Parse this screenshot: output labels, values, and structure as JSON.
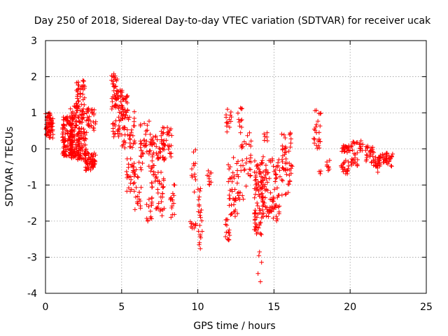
{
  "chart_data": {
    "type": "scatter",
    "title": "Day 250 of 2018, Sidereal Day-to-day VTEC variation (SDTVAR) for receiver ucak",
    "xlabel": "GPS time / hours",
    "ylabel": "SDTVAR / TECUs",
    "xlim": [
      0,
      25
    ],
    "ylim": [
      -4,
      3
    ],
    "xticks": [
      0,
      5,
      10,
      15,
      20,
      25
    ],
    "yticks": [
      -4,
      -3,
      -2,
      -1,
      0,
      1,
      2,
      3
    ],
    "x_tick_labels": [
      "0",
      "5",
      "10",
      "15",
      "20",
      "25"
    ],
    "y_tick_labels": [
      "-4",
      "-3",
      "-2",
      "-1",
      "0",
      "1",
      "2",
      "3"
    ],
    "grid": true,
    "marker": "+",
    "color": "#ff0000",
    "clusters": [
      {
        "x": [
          0.0,
          0.5
        ],
        "y": [
          0.3,
          1.0
        ],
        "n": 70
      },
      {
        "x": [
          1.1,
          1.8
        ],
        "y": [
          -0.2,
          0.9
        ],
        "n": 120
      },
      {
        "x": [
          1.6,
          2.2
        ],
        "y": [
          -0.3,
          1.2
        ],
        "n": 90
      },
      {
        "x": [
          2.0,
          2.6
        ],
        "y": [
          0.7,
          1.9
        ],
        "n": 60
      },
      {
        "x": [
          2.1,
          2.7
        ],
        "y": [
          -0.3,
          0.6
        ],
        "n": 60
      },
      {
        "x": [
          2.6,
          3.3
        ],
        "y": [
          -0.6,
          -0.1
        ],
        "n": 60
      },
      {
        "x": [
          2.6,
          3.3
        ],
        "y": [
          0.5,
          1.2
        ],
        "n": 30
      },
      {
        "x": [
          4.3,
          4.8
        ],
        "y": [
          1.1,
          2.1
        ],
        "n": 45
      },
      {
        "x": [
          4.4,
          4.9
        ],
        "y": [
          0.3,
          1.0
        ],
        "n": 20
      },
      {
        "x": [
          4.8,
          5.4
        ],
        "y": [
          0.8,
          1.7
        ],
        "n": 40
      },
      {
        "x": [
          5.0,
          5.9
        ],
        "y": [
          0.0,
          1.1
        ],
        "n": 45
      },
      {
        "x": [
          5.3,
          5.9
        ],
        "y": [
          -1.2,
          -0.2
        ],
        "n": 25
      },
      {
        "x": [
          5.8,
          6.3
        ],
        "y": [
          -1.7,
          -0.3
        ],
        "n": 25
      },
      {
        "x": [
          6.2,
          6.9
        ],
        "y": [
          -0.6,
          0.8
        ],
        "n": 35
      },
      {
        "x": [
          6.6,
          7.0
        ],
        "y": [
          -2.1,
          -1.3
        ],
        "n": 15
      },
      {
        "x": [
          6.9,
          7.8
        ],
        "y": [
          -1.1,
          0.4
        ],
        "n": 60
      },
      {
        "x": [
          7.2,
          7.8
        ],
        "y": [
          -1.9,
          -1.0
        ],
        "n": 20
      },
      {
        "x": [
          7.6,
          8.3
        ],
        "y": [
          -0.3,
          0.6
        ],
        "n": 35
      },
      {
        "x": [
          8.2,
          8.5
        ],
        "y": [
          -1.9,
          -0.9
        ],
        "n": 15
      },
      {
        "x": [
          9.5,
          9.9
        ],
        "y": [
          -2.2,
          -2.0
        ],
        "n": 10
      },
      {
        "x": [
          9.6,
          9.9
        ],
        "y": [
          -1.2,
          0.0
        ],
        "n": 12
      },
      {
        "x": [
          10.0,
          10.3
        ],
        "y": [
          -2.8,
          -1.0
        ],
        "n": 22
      },
      {
        "x": [
          10.6,
          10.9
        ],
        "y": [
          -1.0,
          -0.6
        ],
        "n": 10
      },
      {
        "x": [
          11.8,
          12.1
        ],
        "y": [
          -2.6,
          -1.9
        ],
        "n": 15
      },
      {
        "x": [
          11.8,
          12.2
        ],
        "y": [
          0.3,
          1.1
        ],
        "n": 14
      },
      {
        "x": [
          12.0,
          12.6
        ],
        "y": [
          -1.9,
          -0.2
        ],
        "n": 40
      },
      {
        "x": [
          12.6,
          13.2
        ],
        "y": [
          -1.5,
          1.2
        ],
        "n": 35
      },
      {
        "x": [
          13.2,
          13.6
        ],
        "y": [
          -0.8,
          0.5
        ],
        "n": 15
      },
      {
        "x": [
          13.7,
          14.3
        ],
        "y": [
          -2.4,
          -0.3
        ],
        "n": 80
      },
      {
        "x": [
          13.9,
          14.2
        ],
        "y": [
          -3.7,
          -2.6
        ],
        "n": 5
      },
      {
        "x": [
          14.2,
          14.8
        ],
        "y": [
          -1.9,
          -0.2
        ],
        "n": 50
      },
      {
        "x": [
          14.3,
          14.6
        ],
        "y": [
          0.1,
          0.6
        ],
        "n": 6
      },
      {
        "x": [
          14.8,
          15.4
        ],
        "y": [
          -2.0,
          -0.2
        ],
        "n": 45
      },
      {
        "x": [
          15.5,
          16.2
        ],
        "y": [
          -1.3,
          0.5
        ],
        "n": 50
      },
      {
        "x": [
          17.6,
          18.1
        ],
        "y": [
          0.0,
          1.1
        ],
        "n": 25
      },
      {
        "x": [
          17.9,
          18.1
        ],
        "y": [
          -0.7,
          -0.6
        ],
        "n": 3
      },
      {
        "x": [
          18.4,
          18.7
        ],
        "y": [
          -0.6,
          -0.3
        ],
        "n": 8
      },
      {
        "x": [
          19.4,
          19.9
        ],
        "y": [
          -0.7,
          -0.3
        ],
        "n": 20
      },
      {
        "x": [
          19.4,
          20.1
        ],
        "y": [
          -0.1,
          0.1
        ],
        "n": 25
      },
      {
        "x": [
          20.0,
          20.5
        ],
        "y": [
          -0.5,
          0.2
        ],
        "n": 25
      },
      {
        "x": [
          20.6,
          20.9
        ],
        "y": [
          -0.1,
          0.3
        ],
        "n": 12
      },
      {
        "x": [
          21.0,
          21.6
        ],
        "y": [
          -0.4,
          0.1
        ],
        "n": 25
      },
      {
        "x": [
          21.5,
          22.0
        ],
        "y": [
          -0.7,
          -0.2
        ],
        "n": 20
      },
      {
        "x": [
          21.8,
          22.4
        ],
        "y": [
          -0.4,
          -0.1
        ],
        "n": 20
      },
      {
        "x": [
          22.3,
          22.8
        ],
        "y": [
          -0.5,
          -0.1
        ],
        "n": 20
      }
    ]
  }
}
